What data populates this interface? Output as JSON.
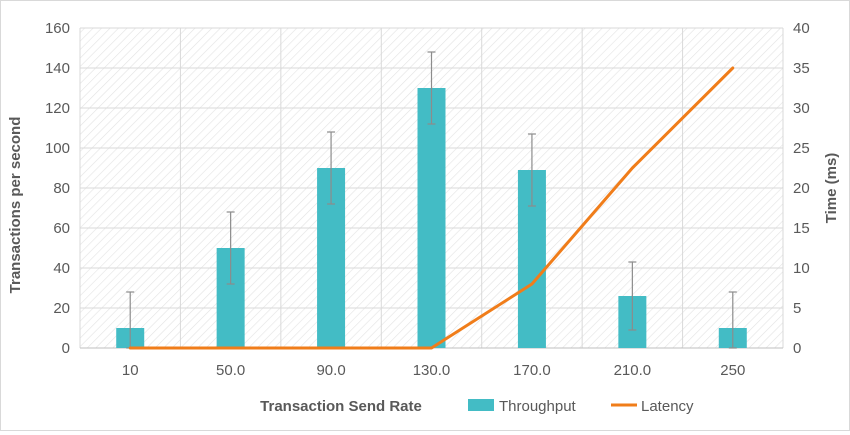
{
  "chart_data": {
    "type": "bar",
    "categories": [
      "10",
      "50.0",
      "90.0",
      "130.0",
      "170.0",
      "210.0",
      "250"
    ],
    "series": [
      {
        "name": "Throughput",
        "type": "bar",
        "axis": "left",
        "color": "#43bcc5",
        "values": [
          10,
          50,
          90,
          130,
          89,
          26,
          10
        ],
        "error": [
          18,
          18,
          18,
          18,
          18,
          17,
          18
        ]
      },
      {
        "name": "Latency",
        "type": "line",
        "axis": "right",
        "color": "#f07d1a",
        "values": [
          0,
          0,
          0,
          0,
          8,
          22.5,
          35
        ]
      }
    ],
    "xlabel": "Transaction Send Rate",
    "ylabel": "Transactions per second",
    "y2label": "Time (ms)",
    "ylim": [
      0,
      160
    ],
    "y2lim": [
      0,
      40
    ],
    "yticks": [
      "0",
      "20",
      "40",
      "60",
      "80",
      "100",
      "120",
      "140",
      "160"
    ],
    "y2ticks": [
      "0",
      "5",
      "10",
      "15",
      "20",
      "25",
      "30",
      "35",
      "40"
    ],
    "grid": true,
    "plot_background": "hatched",
    "legend": "bottom-right"
  }
}
